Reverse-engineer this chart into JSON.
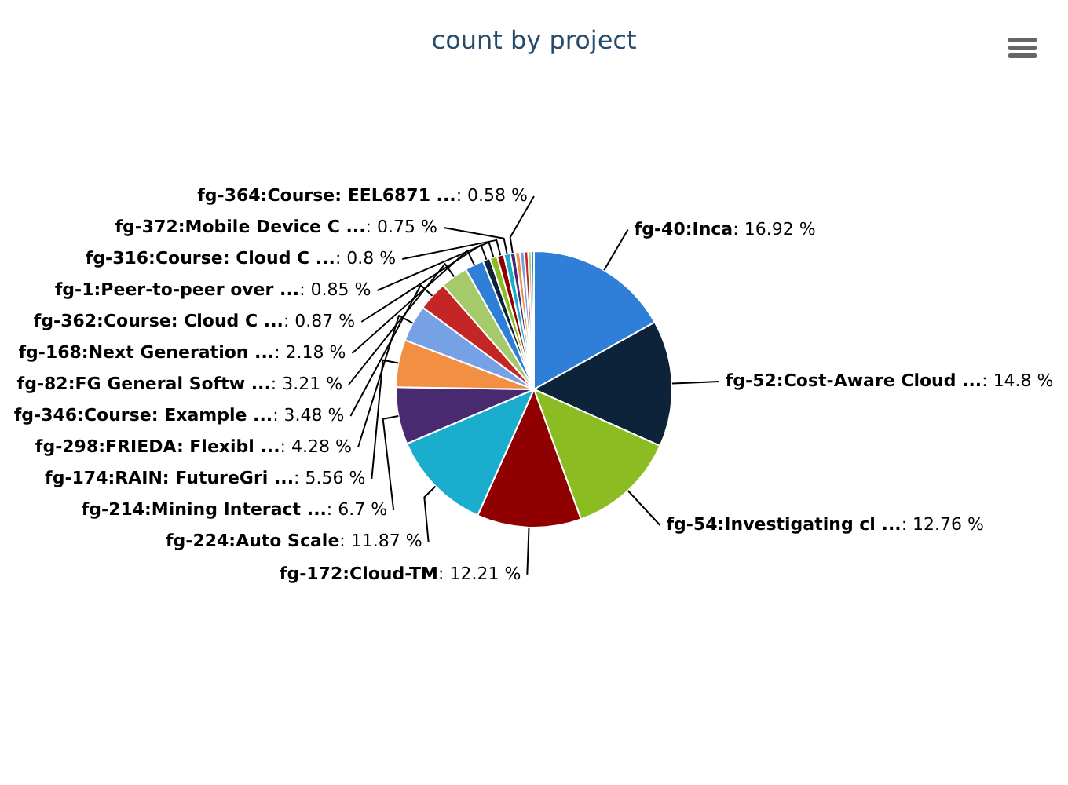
{
  "chart_data": {
    "type": "pie",
    "title": "count by project",
    "categories": [
      "fg-40:Inca",
      "fg-52:Cost-Aware Cloud ...",
      "fg-54:Investigating cl ...",
      "fg-172:Cloud-TM",
      "fg-224:Auto Scale",
      "fg-214:Mining Interact ...",
      "fg-174:RAIN: FutureGri ...",
      "fg-298:FRIEDA: Flexibl ...",
      "fg-346:Course: Example ...",
      "fg-82:FG General Softw ...",
      "fg-168:Next Generation ...",
      "fg-362:Course: Cloud C ...",
      "fg-1:Peer-to-peer over ...",
      "fg-316:Course: Cloud C ...",
      "fg-372:Mobile Device C ...",
      "fg-364:Course: EEL6871 ...",
      null,
      null,
      null,
      null,
      null
    ],
    "values": [
      16.92,
      14.8,
      12.76,
      12.21,
      11.87,
      6.7,
      5.56,
      4.28,
      3.48,
      3.21,
      2.18,
      0.87,
      0.85,
      0.8,
      0.75,
      0.58,
      0.55,
      0.5,
      0.45,
      0.38,
      0.3
    ],
    "value_labels": [
      ": 16.92 %",
      ": 14.8 %",
      ": 12.76 %",
      ": 12.21 %",
      ": 11.87 %",
      ": 6.7 %",
      ": 5.56 %",
      ": 4.28 %",
      ": 3.48 %",
      ": 3.21 %",
      ": 2.18 %",
      ": 0.87 %",
      ": 0.85 %",
      ": 0.8 %",
      ": 0.75 %",
      ": 0.58 %",
      null,
      null,
      null,
      null,
      null
    ],
    "colors": [
      "#2f7ed8",
      "#0d233a",
      "#8bbc21",
      "#910000",
      "#1aadce",
      "#492970",
      "#f28f43",
      "#77a1e5",
      "#c42525",
      "#a6c96a",
      "#2f7ed8",
      "#0d233a",
      "#8bbc21",
      "#910000",
      "#1aadce",
      "#492970",
      "#f28f43",
      "#77a1e5",
      "#c42525",
      "#a6c96a",
      "#2f7ed8"
    ]
  }
}
